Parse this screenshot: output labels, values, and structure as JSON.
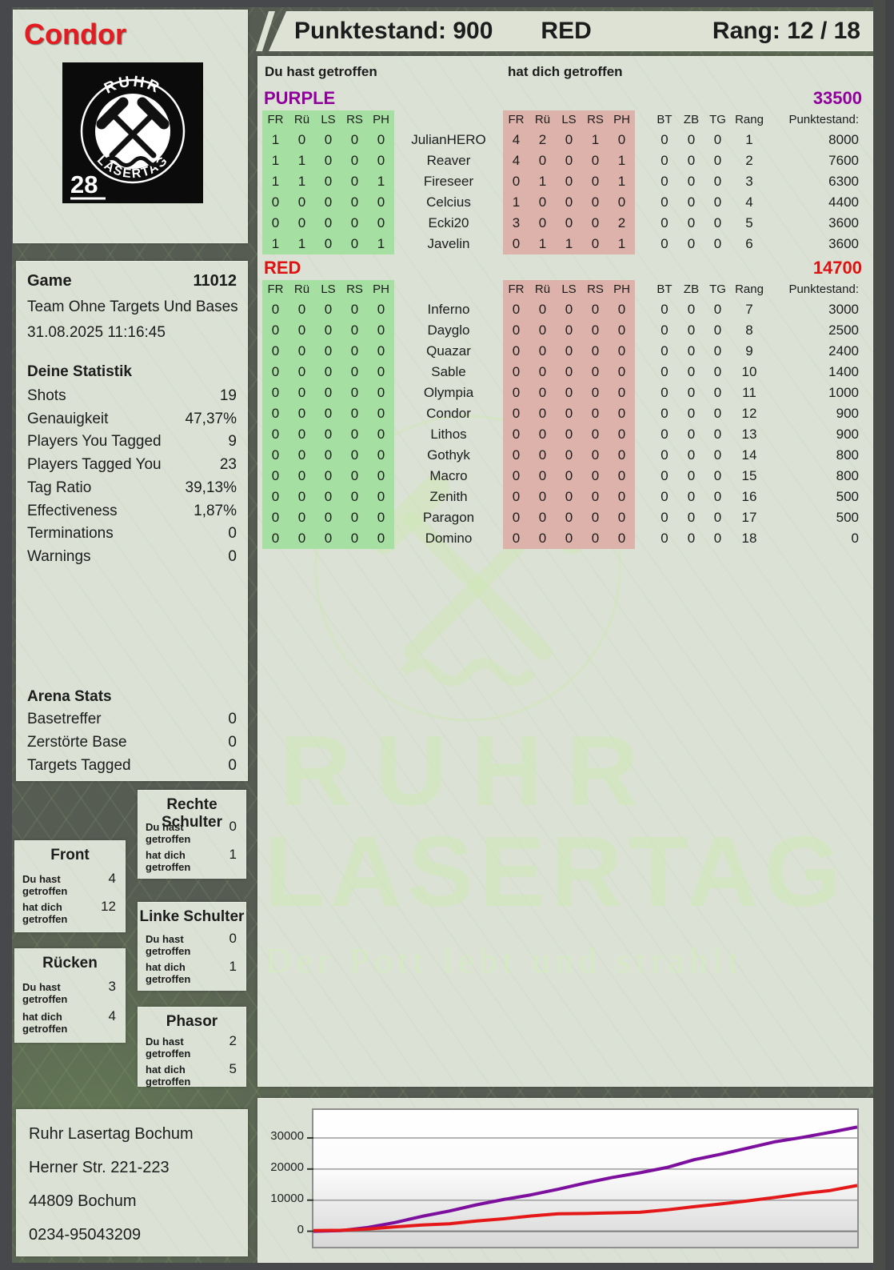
{
  "player": {
    "name": "Condor",
    "badge_number": "28"
  },
  "logo": {
    "brand_top": "RUHR",
    "brand_bottom": "LASERTAG"
  },
  "header": {
    "score_label": "Punktestand: 900",
    "team": "RED",
    "rank_label": "Rang: 12 / 18"
  },
  "hit_labels": {
    "you": "Du hast getroffen",
    "them": "hat dich getroffen"
  },
  "columns": {
    "left": [
      "FR",
      "Rü",
      "LS",
      "RS",
      "PH"
    ],
    "right": [
      "FR",
      "Rü",
      "LS",
      "RS",
      "PH"
    ],
    "extra": [
      "BT",
      "ZB",
      "TG",
      "Rang",
      "Punktestand:"
    ]
  },
  "teams": [
    {
      "name": "PURPLE",
      "color": "#90009c",
      "total": "33500",
      "rows": [
        {
          "you": [
            "1",
            "0",
            "0",
            "0",
            "0"
          ],
          "player": "JulianHERO",
          "them": [
            "4",
            "2",
            "0",
            "1",
            "0"
          ],
          "extra": [
            "0",
            "0",
            "0",
            "1",
            "8000"
          ]
        },
        {
          "you": [
            "1",
            "1",
            "0",
            "0",
            "0"
          ],
          "player": "Reaver",
          "them": [
            "4",
            "0",
            "0",
            "0",
            "1"
          ],
          "extra": [
            "0",
            "0",
            "0",
            "2",
            "7600"
          ]
        },
        {
          "you": [
            "1",
            "1",
            "0",
            "0",
            "1"
          ],
          "player": "Fireseer",
          "them": [
            "0",
            "1",
            "0",
            "0",
            "1"
          ],
          "extra": [
            "0",
            "0",
            "0",
            "3",
            "6300"
          ]
        },
        {
          "you": [
            "0",
            "0",
            "0",
            "0",
            "0"
          ],
          "player": "Celcius",
          "them": [
            "1",
            "0",
            "0",
            "0",
            "0"
          ],
          "extra": [
            "0",
            "0",
            "0",
            "4",
            "4400"
          ]
        },
        {
          "you": [
            "0",
            "0",
            "0",
            "0",
            "0"
          ],
          "player": "Ecki20",
          "them": [
            "3",
            "0",
            "0",
            "0",
            "2"
          ],
          "extra": [
            "0",
            "0",
            "0",
            "5",
            "3600"
          ]
        },
        {
          "you": [
            "1",
            "1",
            "0",
            "0",
            "1"
          ],
          "player": "Javelin",
          "them": [
            "0",
            "1",
            "1",
            "0",
            "1"
          ],
          "extra": [
            "0",
            "0",
            "0",
            "6",
            "3600"
          ]
        }
      ]
    },
    {
      "name": "RED",
      "color": "#de1212",
      "total": "14700",
      "rows": [
        {
          "you": [
            "0",
            "0",
            "0",
            "0",
            "0"
          ],
          "player": "Inferno",
          "them": [
            "0",
            "0",
            "0",
            "0",
            "0"
          ],
          "extra": [
            "0",
            "0",
            "0",
            "7",
            "3000"
          ]
        },
        {
          "you": [
            "0",
            "0",
            "0",
            "0",
            "0"
          ],
          "player": "Dayglo",
          "them": [
            "0",
            "0",
            "0",
            "0",
            "0"
          ],
          "extra": [
            "0",
            "0",
            "0",
            "8",
            "2500"
          ]
        },
        {
          "you": [
            "0",
            "0",
            "0",
            "0",
            "0"
          ],
          "player": "Quazar",
          "them": [
            "0",
            "0",
            "0",
            "0",
            "0"
          ],
          "extra": [
            "0",
            "0",
            "0",
            "9",
            "2400"
          ]
        },
        {
          "you": [
            "0",
            "0",
            "0",
            "0",
            "0"
          ],
          "player": "Sable",
          "them": [
            "0",
            "0",
            "0",
            "0",
            "0"
          ],
          "extra": [
            "0",
            "0",
            "0",
            "10",
            "1400"
          ]
        },
        {
          "you": [
            "0",
            "0",
            "0",
            "0",
            "0"
          ],
          "player": "Olympia",
          "them": [
            "0",
            "0",
            "0",
            "0",
            "0"
          ],
          "extra": [
            "0",
            "0",
            "0",
            "11",
            "1000"
          ]
        },
        {
          "you": [
            "0",
            "0",
            "0",
            "0",
            "0"
          ],
          "player": "Condor",
          "them": [
            "0",
            "0",
            "0",
            "0",
            "0"
          ],
          "extra": [
            "0",
            "0",
            "0",
            "12",
            "900"
          ]
        },
        {
          "you": [
            "0",
            "0",
            "0",
            "0",
            "0"
          ],
          "player": "Lithos",
          "them": [
            "0",
            "0",
            "0",
            "0",
            "0"
          ],
          "extra": [
            "0",
            "0",
            "0",
            "13",
            "900"
          ]
        },
        {
          "you": [
            "0",
            "0",
            "0",
            "0",
            "0"
          ],
          "player": "Gothyk",
          "them": [
            "0",
            "0",
            "0",
            "0",
            "0"
          ],
          "extra": [
            "0",
            "0",
            "0",
            "14",
            "800"
          ]
        },
        {
          "you": [
            "0",
            "0",
            "0",
            "0",
            "0"
          ],
          "player": "Macro",
          "them": [
            "0",
            "0",
            "0",
            "0",
            "0"
          ],
          "extra": [
            "0",
            "0",
            "0",
            "15",
            "800"
          ]
        },
        {
          "you": [
            "0",
            "0",
            "0",
            "0",
            "0"
          ],
          "player": "Zenith",
          "them": [
            "0",
            "0",
            "0",
            "0",
            "0"
          ],
          "extra": [
            "0",
            "0",
            "0",
            "16",
            "500"
          ]
        },
        {
          "you": [
            "0",
            "0",
            "0",
            "0",
            "0"
          ],
          "player": "Paragon",
          "them": [
            "0",
            "0",
            "0",
            "0",
            "0"
          ],
          "extra": [
            "0",
            "0",
            "0",
            "17",
            "500"
          ]
        },
        {
          "you": [
            "0",
            "0",
            "0",
            "0",
            "0"
          ],
          "player": "Domino",
          "them": [
            "0",
            "0",
            "0",
            "0",
            "0"
          ],
          "extra": [
            "0",
            "0",
            "0",
            "18",
            "0"
          ]
        }
      ]
    }
  ],
  "game_panel": {
    "title": "Game",
    "number": "11012",
    "mode": "Team Ohne Targets Und Bases",
    "datetime": "31.08.2025 11:16:45",
    "stats_title": "Deine Statistik",
    "stats": [
      {
        "label": "Shots",
        "value": "19"
      },
      {
        "label": "Genauigkeit",
        "value": "47,37%"
      },
      {
        "label": "Players You Tagged",
        "value": "9"
      },
      {
        "label": "Players Tagged You",
        "value": "23"
      },
      {
        "label": "Tag Ratio",
        "value": "39,13%"
      },
      {
        "label": "Effectiveness",
        "value": "1,87%"
      },
      {
        "label": "Terminations",
        "value": "0"
      },
      {
        "label": "Warnings",
        "value": "0"
      }
    ],
    "arena_title": "Arena Stats",
    "arena_stats": [
      {
        "label": "Basetreffer",
        "value": "0"
      },
      {
        "label": "Zerstörte Base",
        "value": "0"
      },
      {
        "label": "Targets Tagged",
        "value": "0"
      }
    ]
  },
  "body_panels": [
    {
      "title": "Front",
      "you": "4",
      "them": "12"
    },
    {
      "title": "Rücken",
      "you": "3",
      "them": "4"
    },
    {
      "title": "Rechte Schulter",
      "you": "0",
      "them": "1"
    },
    {
      "title": "Linke Schulter",
      "you": "0",
      "them": "1"
    },
    {
      "title": "Phasor",
      "you": "2",
      "them": "5"
    }
  ],
  "address": {
    "lines": [
      "Ruhr Lasertag Bochum",
      "Herner Str. 221-223",
      "44809 Bochum",
      "0234-95043209"
    ]
  },
  "watermark": {
    "line1": "RUHR",
    "line2": "LASERTAG",
    "slogan": "Der Pott lebt und strahlt"
  },
  "chart_data": {
    "type": "line",
    "x": [
      0,
      1,
      2,
      3,
      4,
      5,
      6,
      7,
      8,
      9,
      10,
      11,
      12,
      13,
      14,
      15,
      16,
      17,
      18,
      19,
      20
    ],
    "series": [
      {
        "name": "PURPLE",
        "color": "#7d0f9e",
        "values": [
          0,
          200,
          1200,
          2800,
          4800,
          6500,
          8500,
          10200,
          11700,
          13500,
          15500,
          17300,
          18800,
          20500,
          23000,
          24800,
          26800,
          28800,
          30200,
          31800,
          33500
        ]
      },
      {
        "name": "RED",
        "color": "#e41818",
        "values": [
          200,
          300,
          700,
          1400,
          2000,
          2400,
          3300,
          4000,
          4900,
          5600,
          5700,
          5900,
          6100,
          6900,
          7900,
          8800,
          9800,
          10900,
          12100,
          13100,
          14700
        ]
      }
    ],
    "yticks": [
      0,
      10000,
      20000,
      30000
    ],
    "ylim": [
      -5000,
      39000
    ],
    "grid": true,
    "legend": "none",
    "title": "",
    "xlabel": "",
    "ylabel": ""
  }
}
